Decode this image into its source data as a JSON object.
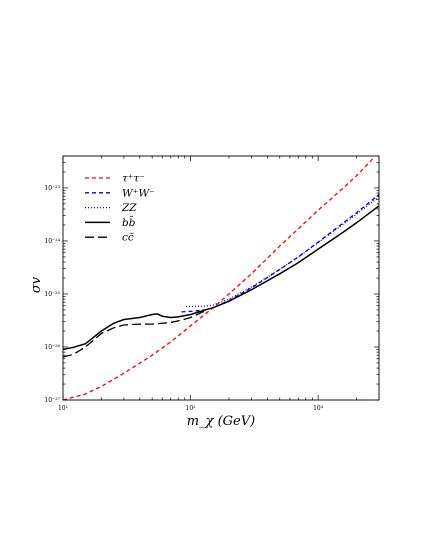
{
  "chart_data": {
    "type": "line",
    "title": "",
    "xlabel": "m_χ (GeV)",
    "ylabel": "σv",
    "xscale": "log",
    "yscale": "log",
    "xlim": [
      10,
      3000
    ],
    "ylim": [
      1e-27,
      4e-23
    ],
    "x_ticks": [
      {
        "value": 10,
        "label": "10¹"
      },
      {
        "value": 100,
        "label": "10²"
      },
      {
        "value": 1000,
        "label": "10³"
      }
    ],
    "y_ticks": [
      {
        "value": 1e-27,
        "label": "10⁻²⁷"
      },
      {
        "value": 1e-26,
        "label": "10⁻²⁶"
      },
      {
        "value": 1e-25,
        "label": "10⁻²⁵"
      },
      {
        "value": 1e-24,
        "label": "10⁻²⁴"
      },
      {
        "value": 1e-23,
        "label": "10⁻²³"
      }
    ],
    "legend_position": "top-left",
    "grid": false,
    "series": [
      {
        "name": "τ⁺τ⁻",
        "color": "#ff0000",
        "style": "dashed",
        "points": [
          [
            10,
            1e-27
          ],
          [
            15,
            1.3e-27
          ],
          [
            20,
            1.8e-27
          ],
          [
            30,
            3.2e-27
          ],
          [
            50,
            7e-27
          ],
          [
            70,
            1.25e-26
          ],
          [
            100,
            2.5e-26
          ],
          [
            150,
            5.5e-26
          ],
          [
            200,
            1e-25
          ],
          [
            300,
            2.4e-25
          ],
          [
            500,
            8e-25
          ],
          [
            700,
            1.7e-24
          ],
          [
            1000,
            3.8e-24
          ],
          [
            1500,
            9e-24
          ],
          [
            2000,
            1.7e-23
          ],
          [
            2700,
            3.6e-23
          ]
        ]
      },
      {
        "name": "W⁺W⁻",
        "color": "#0000cc",
        "style": "dashed",
        "points": [
          [
            85,
            4.6e-26
          ],
          [
            100,
            4.7e-26
          ],
          [
            130,
            5e-26
          ],
          [
            150,
            5.5e-26
          ],
          [
            200,
            7.5e-26
          ],
          [
            300,
            1.3e-25
          ],
          [
            500,
            2.9e-25
          ],
          [
            700,
            5e-25
          ],
          [
            1000,
            9.5e-25
          ],
          [
            1500,
            2e-24
          ],
          [
            2000,
            3.4e-24
          ],
          [
            3000,
            7.5e-24
          ]
        ]
      },
      {
        "name": "ZZ",
        "color": "#0000ff",
        "style": "dotted",
        "points": [
          [
            92,
            5.8e-26
          ],
          [
            100,
            5.8e-26
          ],
          [
            130,
            5.9e-26
          ],
          [
            150,
            6.2e-26
          ],
          [
            200,
            8e-26
          ],
          [
            300,
            1.35e-25
          ],
          [
            500,
            2.9e-25
          ],
          [
            700,
            5e-25
          ],
          [
            1000,
            9.3e-25
          ],
          [
            1500,
            1.9e-24
          ],
          [
            2000,
            3.2e-24
          ],
          [
            3000,
            6.8e-24
          ]
        ]
      },
      {
        "name": "bb̄",
        "color": "#000000",
        "style": "solid",
        "points": [
          [
            10,
            9e-27
          ],
          [
            12,
            9.8e-27
          ],
          [
            15,
            1.15e-26
          ],
          [
            20,
            2e-26
          ],
          [
            25,
            2.8e-26
          ],
          [
            30,
            3.3e-26
          ],
          [
            40,
            3.6e-26
          ],
          [
            50,
            4.1e-26
          ],
          [
            55,
            4.2e-26
          ],
          [
            60,
            3.8e-26
          ],
          [
            70,
            3.6e-26
          ],
          [
            80,
            3.7e-26
          ],
          [
            100,
            4.1e-26
          ],
          [
            130,
            5e-26
          ],
          [
            150,
            5.5e-26
          ],
          [
            200,
            7.3e-26
          ],
          [
            300,
            1.2e-25
          ],
          [
            500,
            2.4e-25
          ],
          [
            700,
            3.9e-25
          ],
          [
            1000,
            7e-25
          ],
          [
            1500,
            1.35e-24
          ],
          [
            2000,
            2.2e-24
          ],
          [
            3000,
            4.6e-24
          ]
        ]
      },
      {
        "name": "cc̄",
        "color": "#000000",
        "style": "longdash",
        "points": [
          [
            10,
            6.5e-27
          ],
          [
            12,
            7.2e-27
          ],
          [
            15,
            1e-26
          ],
          [
            20,
            1.8e-26
          ],
          [
            25,
            2.3e-26
          ],
          [
            30,
            2.6e-26
          ],
          [
            40,
            2.7e-26
          ],
          [
            50,
            2.7e-26
          ],
          [
            60,
            2.8e-26
          ],
          [
            70,
            2.9e-26
          ],
          [
            80,
            3.1e-26
          ],
          [
            100,
            3.6e-26
          ],
          [
            130,
            4.8e-26
          ]
        ]
      }
    ]
  }
}
